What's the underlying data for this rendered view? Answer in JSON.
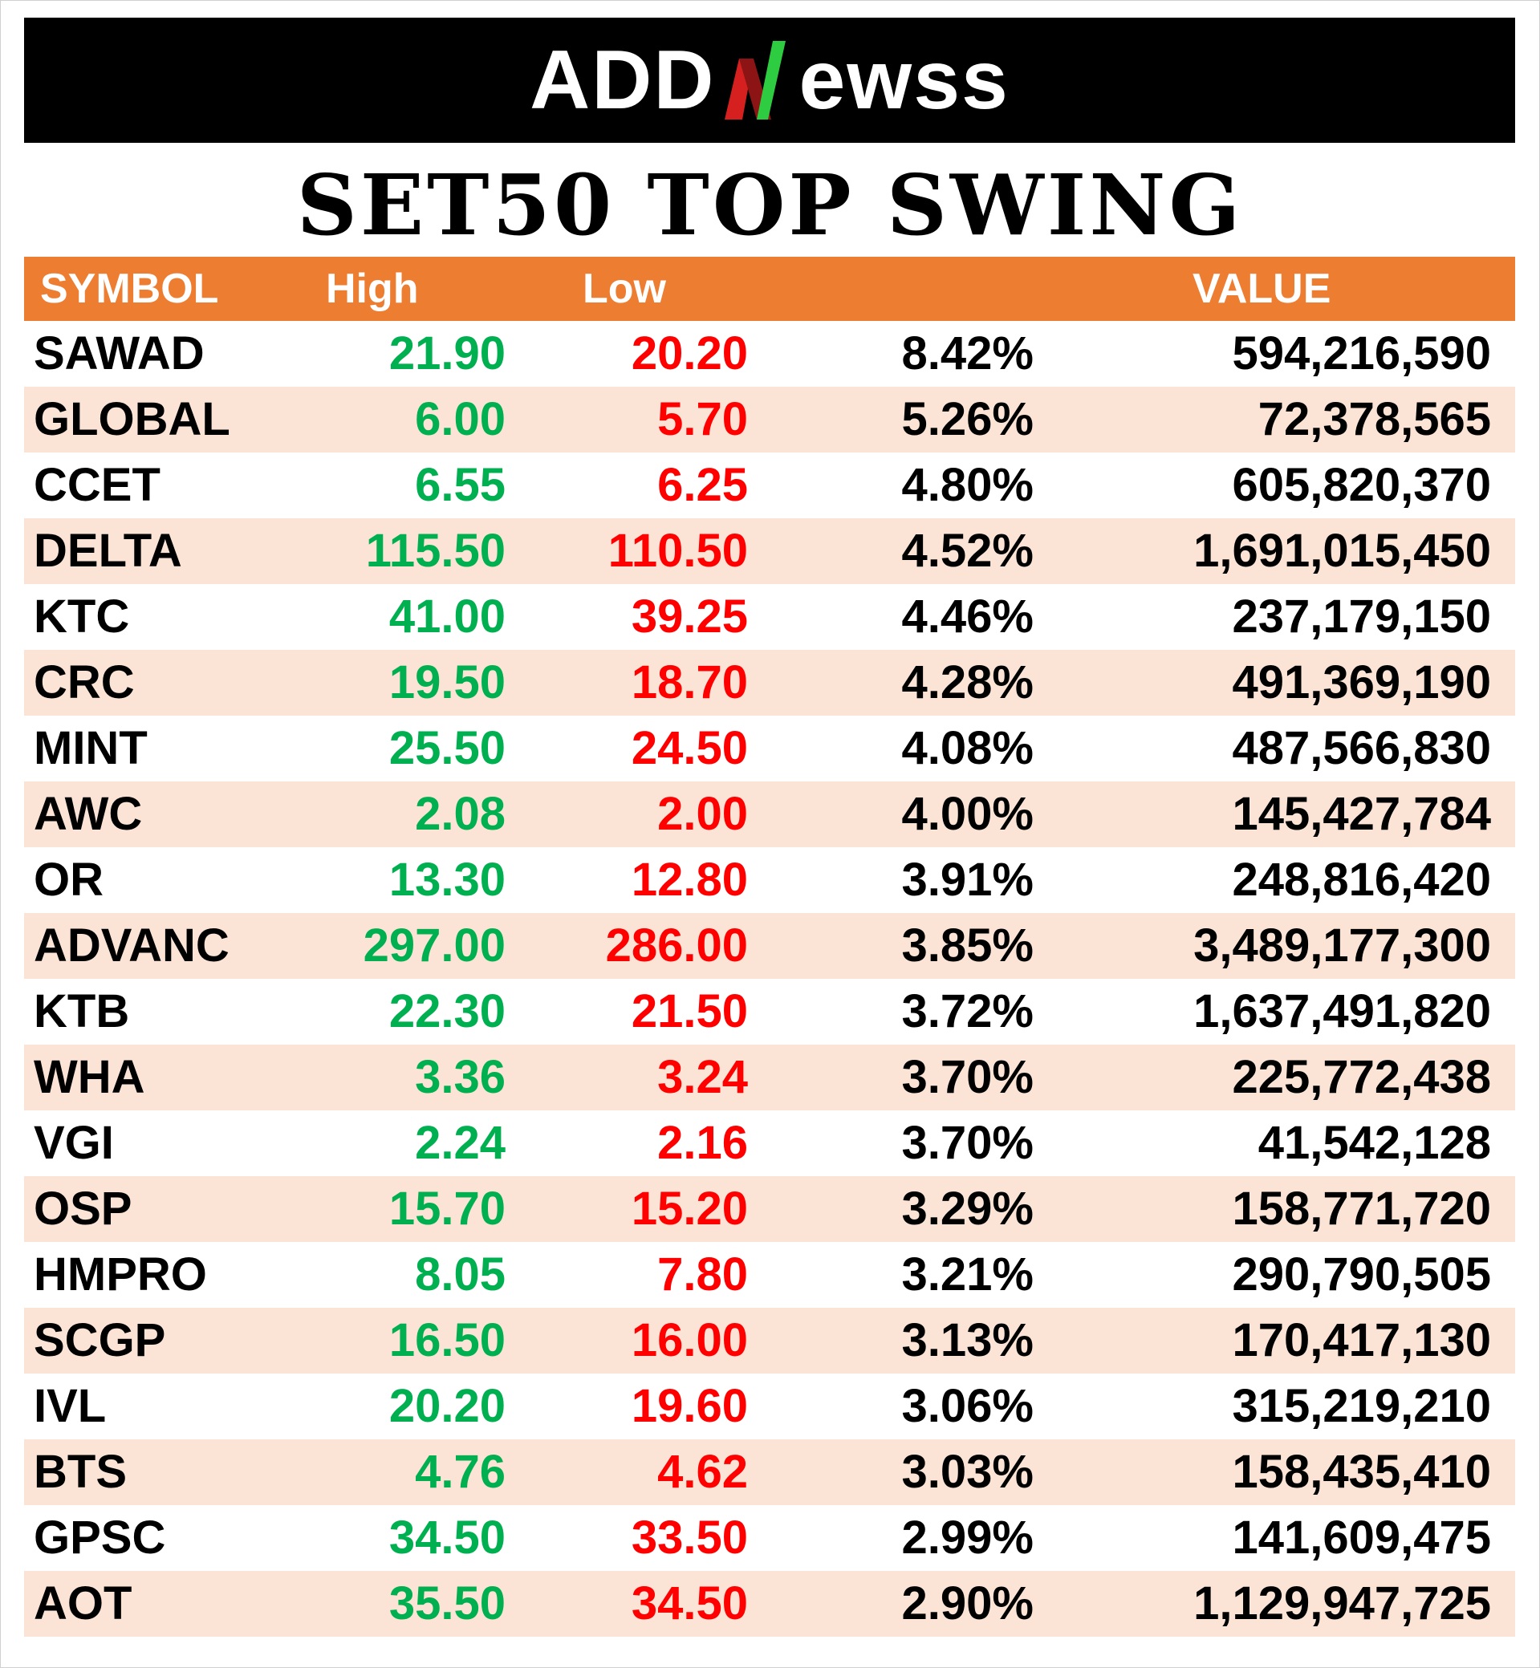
{
  "brand": {
    "logo_left": "ADD",
    "logo_right": "ewss",
    "accent_green": "#2ecc40",
    "accent_red": "#d62020"
  },
  "title": "SET50 TOP SWING",
  "table": {
    "headers": {
      "symbol": "SYMBOL",
      "high": "High",
      "low": "Low",
      "pct": "",
      "value": "VALUE"
    },
    "colors": {
      "header_bg": "#ed7d31",
      "alt_row_bg": "#fbe4d5",
      "high_text": "#00b050",
      "low_text": "#ff0000"
    },
    "rows": [
      {
        "symbol": "SAWAD",
        "high": "21.90",
        "low": "20.20",
        "pct": "8.42%",
        "value": "594,216,590"
      },
      {
        "symbol": "GLOBAL",
        "high": "6.00",
        "low": "5.70",
        "pct": "5.26%",
        "value": "72,378,565"
      },
      {
        "symbol": "CCET",
        "high": "6.55",
        "low": "6.25",
        "pct": "4.80%",
        "value": "605,820,370"
      },
      {
        "symbol": "DELTA",
        "high": "115.50",
        "low": "110.50",
        "pct": "4.52%",
        "value": "1,691,015,450"
      },
      {
        "symbol": "KTC",
        "high": "41.00",
        "low": "39.25",
        "pct": "4.46%",
        "value": "237,179,150"
      },
      {
        "symbol": "CRC",
        "high": "19.50",
        "low": "18.70",
        "pct": "4.28%",
        "value": "491,369,190"
      },
      {
        "symbol": "MINT",
        "high": "25.50",
        "low": "24.50",
        "pct": "4.08%",
        "value": "487,566,830"
      },
      {
        "symbol": "AWC",
        "high": "2.08",
        "low": "2.00",
        "pct": "4.00%",
        "value": "145,427,784"
      },
      {
        "symbol": "OR",
        "high": "13.30",
        "low": "12.80",
        "pct": "3.91%",
        "value": "248,816,420"
      },
      {
        "symbol": "ADVANC",
        "high": "297.00",
        "low": "286.00",
        "pct": "3.85%",
        "value": "3,489,177,300"
      },
      {
        "symbol": "KTB",
        "high": "22.30",
        "low": "21.50",
        "pct": "3.72%",
        "value": "1,637,491,820"
      },
      {
        "symbol": "WHA",
        "high": "3.36",
        "low": "3.24",
        "pct": "3.70%",
        "value": "225,772,438"
      },
      {
        "symbol": "VGI",
        "high": "2.24",
        "low": "2.16",
        "pct": "3.70%",
        "value": "41,542,128"
      },
      {
        "symbol": "OSP",
        "high": "15.70",
        "low": "15.20",
        "pct": "3.29%",
        "value": "158,771,720"
      },
      {
        "symbol": "HMPRO",
        "high": "8.05",
        "low": "7.80",
        "pct": "3.21%",
        "value": "290,790,505"
      },
      {
        "symbol": "SCGP",
        "high": "16.50",
        "low": "16.00",
        "pct": "3.13%",
        "value": "170,417,130"
      },
      {
        "symbol": "IVL",
        "high": "20.20",
        "low": "19.60",
        "pct": "3.06%",
        "value": "315,219,210"
      },
      {
        "symbol": "BTS",
        "high": "4.76",
        "low": "4.62",
        "pct": "3.03%",
        "value": "158,435,410"
      },
      {
        "symbol": "GPSC",
        "high": "34.50",
        "low": "33.50",
        "pct": "2.99%",
        "value": "141,609,475"
      },
      {
        "symbol": "AOT",
        "high": "35.50",
        "low": "34.50",
        "pct": "2.90%",
        "value": "1,129,947,725"
      }
    ]
  }
}
